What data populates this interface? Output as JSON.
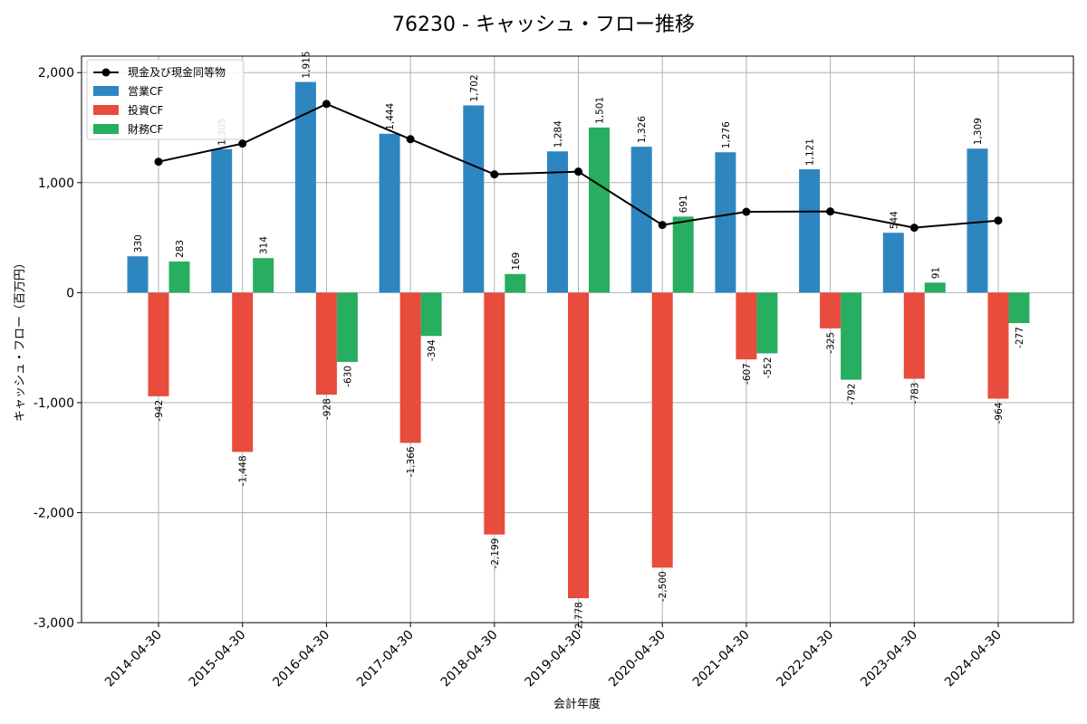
{
  "chart_data": {
    "type": "bar",
    "title": "76230 - キャッシュ・フロー推移",
    "xlabel": "会計年度",
    "ylabel": "キャッシュ・フロー（百万円）",
    "categories": [
      "2014-04-30",
      "2015-04-30",
      "2016-04-30",
      "2017-04-30",
      "2018-04-30",
      "2019-04-30",
      "2020-04-30",
      "2021-04-30",
      "2022-04-30",
      "2023-04-30",
      "2024-04-30"
    ],
    "ylim": [
      -3000,
      2150
    ],
    "yticks": [
      -3000,
      -2000,
      -1000,
      0,
      1000,
      2000
    ],
    "ytick_labels": [
      "-3,000",
      "-2,000",
      "-1,000",
      "0",
      "1,000",
      "2,000"
    ],
    "grid": true,
    "legend_position": "top-left",
    "series": [
      {
        "name": "営業CF",
        "kind": "bar",
        "color": "#2e86c1",
        "values": [
          330,
          1305,
          1915,
          1444,
          1702,
          1284,
          1326,
          1276,
          1121,
          544,
          1309
        ],
        "labels": [
          "330",
          "1,305",
          "1,915",
          "1,444",
          "1,702",
          "1,284",
          "1,326",
          "1,276",
          "1,121",
          "544",
          "1,309"
        ]
      },
      {
        "name": "投資CF",
        "kind": "bar",
        "color": "#e74c3c",
        "values": [
          -942,
          -1448,
          -928,
          -1366,
          -2199,
          -2778,
          -2500,
          -607,
          -325,
          -783,
          -964
        ],
        "labels": [
          "-942",
          "-1,448",
          "-928",
          "-1,366",
          "-2,199",
          "-2,778",
          "-2,500",
          "-607",
          "-325",
          "-783",
          "-964"
        ]
      },
      {
        "name": "財務CF",
        "kind": "bar",
        "color": "#27ae60",
        "values": [
          283,
          314,
          -630,
          -394,
          169,
          1501,
          691,
          -552,
          -792,
          91,
          -277
        ],
        "labels": [
          "283",
          "314",
          "-630",
          "-394",
          "169",
          "1,501",
          "691",
          "-552",
          "-792",
          "91",
          "-277"
        ]
      },
      {
        "name": "現金及び現金同等物",
        "kind": "line",
        "color": "#000000",
        "values": [
          1190,
          1355,
          1715,
          1395,
          1075,
          1100,
          615,
          735,
          738,
          590,
          655
        ]
      }
    ],
    "legend_order": [
      "現金及び現金同等物",
      "営業CF",
      "投資CF",
      "財務CF"
    ]
  }
}
